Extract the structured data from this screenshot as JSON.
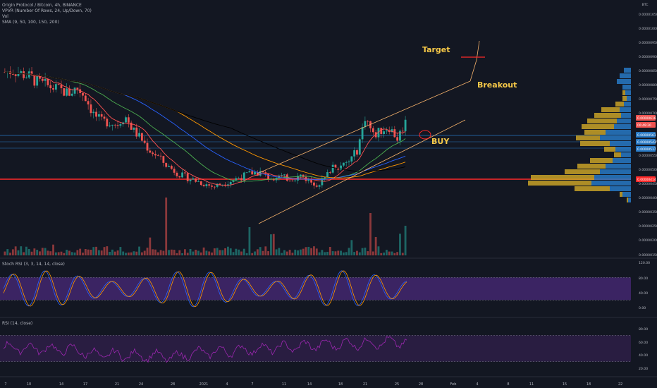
{
  "legend": {
    "line1": "Origin Protocol / Bitcoin, 4h, BINANCE",
    "line2": "VPVR (Number Of Rows, 24, Up/Down, 70)",
    "line3": "Vol",
    "line4": "SMA (9, 50, 100, 150, 200)",
    "stoch_label": "Stoch RSI (3, 3, 14, 14, close)",
    "rsi_label": "RSI (14, close)"
  },
  "annotations": {
    "target": "Target",
    "breakout": "Breakout",
    "buy": "BUY"
  },
  "colors": {
    "background": "#131722",
    "up": "#26a69a",
    "down": "#ef5350",
    "sma9": "#ff5252",
    "sma50": "#4caf50",
    "sma100": "#2962ff",
    "sma150": "#ff9800",
    "sma200": "#000000",
    "vpvr_up": "#2879c4",
    "vpvr_down": "#c9a227",
    "channel": "#f6b26b",
    "support": "#ff2a2a",
    "stoch_band": "#4a2a7a",
    "rsi_band": "#2e1f46",
    "rsi_line": "#9c27b0",
    "annotation": "#f7c948"
  },
  "chart_data": [
    {
      "type": "candlestick",
      "title": "Origin Protocol / Bitcoin, 4h, BINANCE",
      "currency": "BTC",
      "ylim": [
        1.5e-06,
        1.05e-05
      ],
      "yticks": [
        "0.00000150",
        "0.00000200",
        "0.00000250",
        "0.00000350",
        "0.00000400",
        "0.00000450",
        "0.00000500",
        "0.00000550",
        "0.00000650",
        "0.00000700",
        "0.00000750",
        "0.00000800",
        "0.00000850",
        "0.00000900",
        "0.00000950",
        "0.00001000",
        "0.00001050"
      ],
      "price_tags": [
        {
          "value": "0.00000616",
          "color": "#ef5350"
        },
        {
          "value": "00:49:20",
          "color": "#ef5350"
        },
        {
          "value": "0.00000561",
          "color": "#2879c4"
        },
        {
          "value": "0.00000543",
          "color": "#2879c4"
        },
        {
          "value": "0.00000517",
          "color": "#2879c4"
        },
        {
          "value": "0.00000414",
          "color": "#ff2a2a"
        }
      ],
      "xticks": [
        "7",
        "10",
        "14",
        "17",
        "21",
        "24",
        "28",
        "2021",
        "4",
        "7",
        "11",
        "14",
        "18",
        "21",
        "25",
        "28",
        "Feb",
        "4",
        "8",
        "11",
        "15",
        "18",
        "22"
      ],
      "close_path": [
        [
          0.0,
          7.95e-06
        ],
        [
          0.02,
          8e-06
        ],
        [
          0.04,
          7.9e-06
        ],
        [
          0.06,
          7.8e-06
        ],
        [
          0.08,
          7.6e-06
        ],
        [
          0.1,
          7.5e-06
        ],
        [
          0.12,
          7.4e-06
        ],
        [
          0.14,
          7.3e-06
        ],
        [
          0.16,
          7.2e-06
        ],
        [
          0.18,
          7.4e-06
        ],
        [
          0.2,
          7.1e-06
        ],
        [
          0.22,
          6.5e-06
        ],
        [
          0.24,
          6.2e-06
        ],
        [
          0.26,
          6.2e-06
        ],
        [
          0.28,
          6.1e-06
        ],
        [
          0.3,
          6.4e-06
        ],
        [
          0.32,
          5.9e-06
        ],
        [
          0.34,
          5.6e-06
        ],
        [
          0.36,
          5.2e-06
        ],
        [
          0.38,
          5e-06
        ],
        [
          0.4,
          4.7e-06
        ],
        [
          0.42,
          4.5e-06
        ],
        [
          0.44,
          4.3e-06
        ],
        [
          0.46,
          4.2e-06
        ],
        [
          0.48,
          4.1e-06
        ],
        [
          0.5,
          4e-06
        ],
        [
          0.52,
          3.9e-06
        ],
        [
          0.54,
          4e-06
        ],
        [
          0.56,
          4.1e-06
        ],
        [
          0.58,
          4.2e-06
        ],
        [
          0.6,
          4.3e-06
        ],
        [
          0.62,
          4.4e-06
        ],
        [
          0.64,
          4.4e-06
        ],
        [
          0.66,
          4.2e-06
        ],
        [
          0.68,
          4.3e-06
        ],
        [
          0.7,
          4.2e-06
        ],
        [
          0.72,
          4.2e-06
        ],
        [
          0.74,
          4.3e-06
        ],
        [
          0.76,
          4.1e-06
        ],
        [
          0.78,
          4e-06
        ],
        [
          0.8,
          4.2e-06
        ],
        [
          0.82,
          4.7e-06
        ],
        [
          0.84,
          4.6e-06
        ],
        [
          0.86,
          4.8e-06
        ],
        [
          0.88,
          5.2e-06
        ],
        [
          0.9,
          6.4e-06
        ],
        [
          0.92,
          5.7e-06
        ],
        [
          0.94,
          5.9e-06
        ],
        [
          0.96,
          6e-06
        ],
        [
          0.98,
          5.6e-06
        ],
        [
          1.0,
          6.2e-06
        ]
      ]
    },
    {
      "type": "line",
      "title": "Stoch RSI (3, 3, 14, 14, close)",
      "ylim": [
        0,
        120
      ],
      "yticks": [
        "120.00",
        "80.00",
        "40.00",
        "0.00"
      ],
      "band": [
        20,
        80
      ]
    },
    {
      "type": "line",
      "title": "RSI (14, close)",
      "ylim": [
        20,
        80
      ],
      "yticks": [
        "80.00",
        "60.00",
        "40.00",
        "20.00"
      ],
      "band": [
        30,
        70
      ]
    }
  ]
}
